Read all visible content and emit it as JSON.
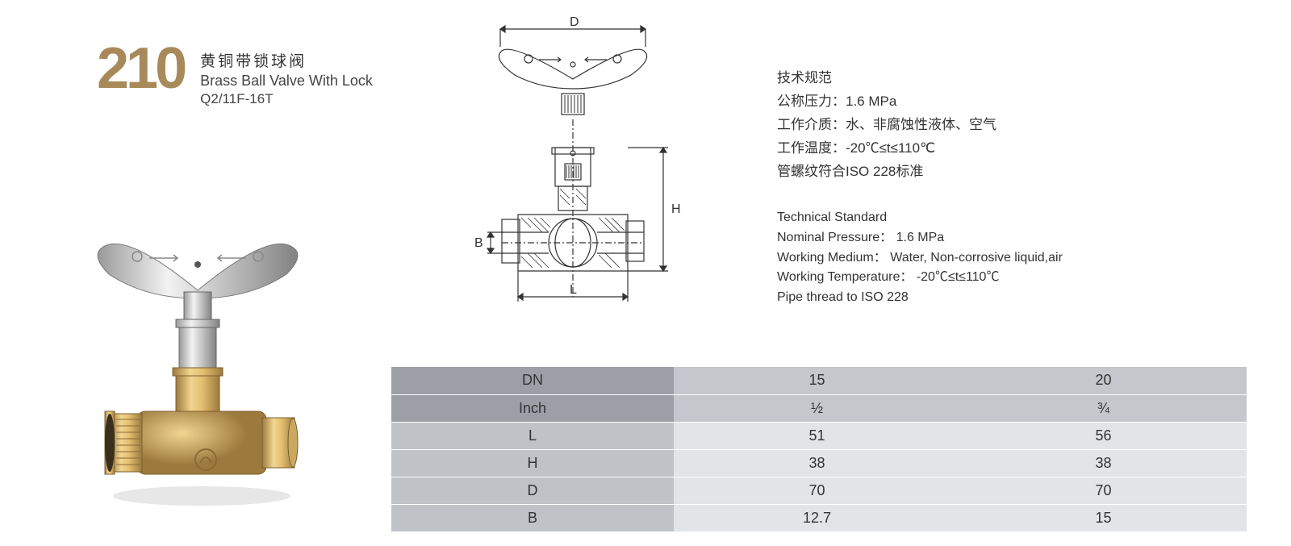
{
  "header": {
    "number": "210",
    "title_cn": "黄铜带锁球阀",
    "title_en": "Brass Ball Valve With Lock",
    "model": "Q2/11F-16T"
  },
  "spec_cn": {
    "heading": "技术规范",
    "pressure": "公称压力：1.6 MPa",
    "medium": "工作介质：水、非腐蚀性液体、空气",
    "temp": "工作温度：-20℃≤t≤110℃",
    "thread": "管螺纹符合ISO 228标准"
  },
  "spec_en": {
    "heading": "Technical Standard",
    "pressure": "Nominal Pressure： 1.6 MPa",
    "medium": "Working Medium： Water, Non-corrosive liquid,air",
    "temp": "Working Temperature： -20℃≤t≤110℃",
    "thread": "Pipe thread to ISO 228"
  },
  "drawing_labels": {
    "D": "D",
    "H": "H",
    "B": "B",
    "L": "L"
  },
  "table": {
    "header_rows": [
      {
        "label": "DN",
        "c1": "15",
        "c2": "20"
      },
      {
        "label": "Inch",
        "c1": "½",
        "c2": "¾"
      }
    ],
    "body_rows": [
      {
        "label": "L",
        "c1": "51",
        "c2": "56"
      },
      {
        "label": "H",
        "c1": "38",
        "c2": "38"
      },
      {
        "label": "D",
        "c1": "70",
        "c2": "70"
      },
      {
        "label": "B",
        "c1": "12.7",
        "c2": "15"
      }
    ]
  },
  "colors": {
    "brass_light": "#e8c878",
    "brass_dark": "#b8935a",
    "chrome_light": "#e8e8e8",
    "chrome_dark": "#a0a0a0",
    "number_color": "#a88a5a",
    "table_hdr_label": "#9c9fa5",
    "table_hdr_data": "#c4c7cc",
    "table_body_label": "#bfc2c7",
    "table_body_data": "#e2e4e7"
  }
}
